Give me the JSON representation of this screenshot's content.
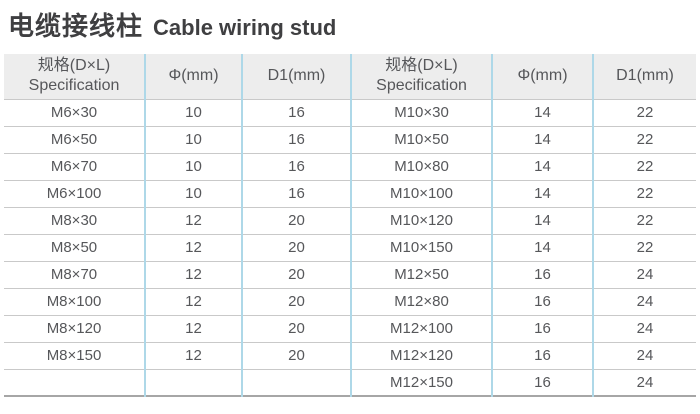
{
  "page": {
    "title_zh": "电缆接线柱",
    "title_en": "Cable wiring stud"
  },
  "table": {
    "header": {
      "spec_zh": "规格(D×L)",
      "spec_en": "Specification",
      "phi": "Φ(mm)",
      "d1": "D1(mm)"
    },
    "rows": [
      [
        "M6×30",
        "10",
        "16",
        "M10×30",
        "14",
        "22"
      ],
      [
        "M6×50",
        "10",
        "16",
        "M10×50",
        "14",
        "22"
      ],
      [
        "M6×70",
        "10",
        "16",
        "M10×80",
        "14",
        "22"
      ],
      [
        "M6×100",
        "10",
        "16",
        "M10×100",
        "14",
        "22"
      ],
      [
        "M8×30",
        "12",
        "20",
        "M10×120",
        "14",
        "22"
      ],
      [
        "M8×50",
        "12",
        "20",
        "M10×150",
        "14",
        "22"
      ],
      [
        "M8×70",
        "12",
        "20",
        "M12×50",
        "16",
        "24"
      ],
      [
        "M8×100",
        "12",
        "20",
        "M12×80",
        "16",
        "24"
      ],
      [
        "M8×120",
        "12",
        "20",
        "M12×100",
        "16",
        "24"
      ],
      [
        "M8×150",
        "12",
        "20",
        "M12×120",
        "16",
        "24"
      ],
      [
        "",
        "",
        "",
        "M12×150",
        "16",
        "24"
      ]
    ]
  },
  "colors": {
    "header_bg": "#ededed",
    "column_divider": "#aed8e8",
    "row_divider": "#c9c9c9",
    "table_bottom_border": "#a6a6a6",
    "text": "#56575a",
    "title": "#3f3f41"
  }
}
